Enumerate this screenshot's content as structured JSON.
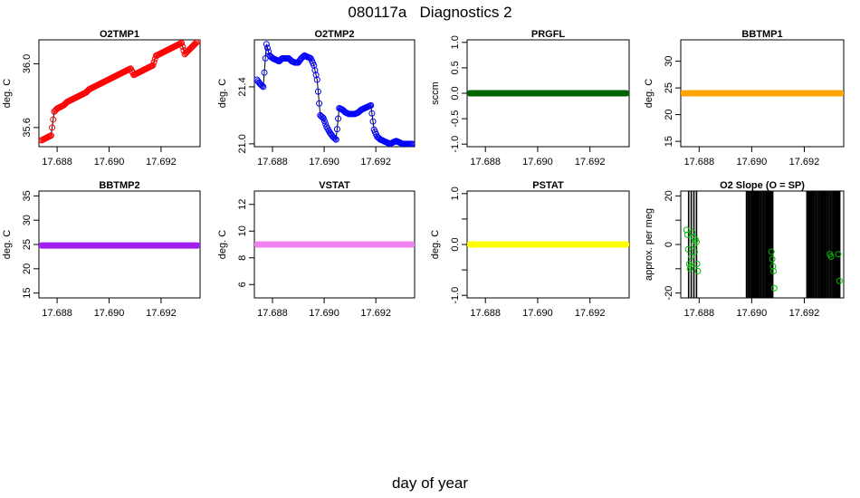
{
  "title": "080117a   Diagnostics 2",
  "xlabel": "day of year",
  "x_range": [
    17.6873,
    17.6935
  ],
  "x_ticks": [
    "17.688",
    "17.690",
    "17.692"
  ],
  "x_tick_values": [
    17.688,
    17.69,
    17.692
  ],
  "chart_data": [
    {
      "type": "line",
      "title": "O2TMP1",
      "ylabel": "deg. C",
      "color": "#ff0000",
      "ylim": [
        35.48,
        36.15
      ],
      "yticks": [
        35.6,
        36.0
      ],
      "ytick_labels": [
        "35.6",
        "36.0"
      ],
      "series": {
        "x_start": 17.6874,
        "x_end": 17.6934,
        "y": [
          35.52,
          35.53,
          35.54,
          35.55,
          35.7,
          35.72,
          35.73,
          35.74,
          35.76,
          35.77,
          35.78,
          35.79,
          35.8,
          35.81,
          35.82,
          35.84,
          35.85,
          35.86,
          35.87,
          35.88,
          35.89,
          35.9,
          35.91,
          35.92,
          35.93,
          35.94,
          35.95,
          35.96,
          35.97,
          35.93,
          35.94,
          35.95,
          35.96,
          35.97,
          35.98,
          35.99,
          36.05,
          36.06,
          36.07,
          36.08,
          36.09,
          36.1,
          36.11,
          36.12,
          36.13,
          36.06,
          36.08,
          36.1,
          36.12,
          36.14
        ]
      }
    },
    {
      "type": "line",
      "title": "O2TMP2",
      "ylabel": "deg. C",
      "color": "#0000ff",
      "ylim": [
        20.98,
        21.73
      ],
      "yticks": [
        21.0,
        21.4
      ],
      "ytick_labels": [
        "21.0",
        "21.4"
      ],
      "series": {
        "x_start": 17.6874,
        "x_end": 17.6934,
        "y": [
          21.45,
          21.42,
          21.4,
          21.7,
          21.62,
          21.6,
          21.59,
          21.58,
          21.6,
          21.6,
          21.6,
          21.58,
          21.57,
          21.57,
          21.6,
          21.62,
          21.61,
          21.6,
          21.55,
          21.45,
          21.2,
          21.18,
          21.12,
          21.08,
          21.05,
          21.03,
          21.25,
          21.24,
          21.22,
          21.21,
          21.21,
          21.21,
          21.22,
          21.24,
          21.25,
          21.26,
          21.27,
          21.1,
          21.05,
          21.03,
          21.02,
          21.01,
          21.0,
          21.01,
          21.02,
          21.01,
          21.0,
          21.0,
          21.0,
          21.0
        ]
      }
    },
    {
      "type": "line",
      "title": "PRGFL",
      "ylabel": "sccm",
      "color": "#006400",
      "ylim": [
        -1.05,
        1.05
      ],
      "yticks": [
        -1.0,
        -0.5,
        0.0,
        0.5,
        1.0
      ],
      "ytick_labels": [
        "-1.0",
        "-0.5",
        "0.0",
        "0.5",
        "1.0"
      ],
      "series": {
        "x_start": 17.6874,
        "x_end": 17.6934,
        "y": [
          0.0,
          0.0
        ]
      }
    },
    {
      "type": "line",
      "title": "BBTMP1",
      "ylabel": "deg. C",
      "color": "#ffa500",
      "ylim": [
        14,
        34
      ],
      "yticks": [
        15,
        20,
        25,
        30
      ],
      "ytick_labels": [
        "15",
        "20",
        "25",
        "30"
      ],
      "series": {
        "x_start": 17.6874,
        "x_end": 17.6934,
        "y": [
          24.0,
          24.0
        ]
      }
    },
    {
      "type": "line",
      "title": "BBTMP2",
      "ylabel": "deg. C",
      "color": "#a020f0",
      "ylim": [
        14,
        36
      ],
      "yticks": [
        15,
        20,
        25,
        30,
        35
      ],
      "ytick_labels": [
        "15",
        "20",
        "25",
        "30",
        "35"
      ],
      "series": {
        "x_start": 17.6874,
        "x_end": 17.6934,
        "y": [
          24.8,
          24.8
        ]
      }
    },
    {
      "type": "line",
      "title": "VSTAT",
      "ylabel": "deg. C",
      "color": "#ee82ee",
      "ylim": [
        5,
        13
      ],
      "yticks": [
        6,
        8,
        10,
        12
      ],
      "ytick_labels": [
        "6",
        "8",
        "10",
        "12"
      ],
      "series": {
        "x_start": 17.6874,
        "x_end": 17.6934,
        "y": [
          9.0,
          9.0
        ]
      }
    },
    {
      "type": "line",
      "title": "PSTAT",
      "ylabel": "deg. C",
      "color": "#ffff00",
      "ylim": [
        -1.05,
        1.05
      ],
      "yticks": [
        -1.0,
        -0.5,
        0.0,
        0.5,
        1.0
      ],
      "ytick_labels": [
        "-1.0",
        "",
        "0.0",
        "",
        "1.0"
      ],
      "series": {
        "x_start": 17.6874,
        "x_end": 17.6934,
        "y": [
          0.0,
          0.0
        ]
      }
    },
    {
      "type": "scatter",
      "title": "O2 Slope (O = SP)",
      "ylabel": "approx. per meg",
      "color": "#00bb00",
      "ylim": [
        -22,
        22
      ],
      "yticks": [
        -20,
        -10,
        0,
        10,
        20
      ],
      "ytick_labels": [
        "-20",
        "",
        "0",
        "",
        "20"
      ],
      "points": [
        [
          17.68752,
          6
        ],
        [
          17.68755,
          4
        ],
        [
          17.68758,
          -2
        ],
        [
          17.68762,
          -8
        ],
        [
          17.68765,
          -10
        ],
        [
          17.68768,
          -9
        ],
        [
          17.6877,
          -5
        ],
        [
          17.68774,
          5
        ],
        [
          17.68778,
          3
        ],
        [
          17.6878,
          0
        ],
        [
          17.68783,
          -3
        ],
        [
          17.68786,
          2
        ],
        [
          17.6879,
          1
        ],
        [
          17.68792,
          -8
        ],
        [
          17.68795,
          -11
        ],
        [
          17.69075,
          -3
        ],
        [
          17.69078,
          -6
        ],
        [
          17.69081,
          -9
        ],
        [
          17.69083,
          -11
        ],
        [
          17.69086,
          -18
        ],
        [
          17.69297,
          -4
        ],
        [
          17.69302,
          -5
        ],
        [
          17.69329,
          -4
        ],
        [
          17.69334,
          -15
        ]
      ],
      "vlines": [
        17.6876,
        17.6877,
        17.6878,
        17.6879,
        17.6898,
        17.68985,
        17.6899,
        17.68995,
        17.69,
        17.69005,
        17.6901,
        17.69015,
        17.6902,
        17.69025,
        17.6903,
        17.69035,
        17.6904,
        17.69045,
        17.6905,
        17.69055,
        17.6906,
        17.69065,
        17.6907,
        17.69075,
        17.6908,
        17.6921,
        17.69215,
        17.6922,
        17.69225,
        17.6923,
        17.69235,
        17.6924,
        17.69245,
        17.6925,
        17.69255,
        17.6926,
        17.69265,
        17.6927,
        17.69275,
        17.6928,
        17.69285,
        17.6929,
        17.69295,
        17.693,
        17.69305,
        17.6931,
        17.69315,
        17.6932,
        17.69325,
        17.6933,
        17.69335
      ]
    }
  ]
}
